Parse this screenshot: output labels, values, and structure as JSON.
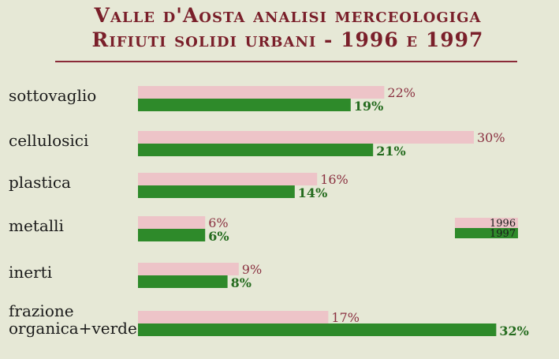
{
  "chart_data": {
    "type": "bar",
    "orientation": "horizontal",
    "title": "Valle d'Aosta analisi merceologiga",
    "subtitle": "Rifiuti solidi urbani - 1996 e 1997",
    "categories": [
      [
        "sottovaglio"
      ],
      [
        "cellulosici"
      ],
      [
        "plastica"
      ],
      [
        "metalli"
      ],
      [
        "inerti"
      ],
      [
        "frazione",
        "organica+verde"
      ]
    ],
    "series": [
      {
        "name": "1996",
        "values": [
          22,
          30,
          16,
          6,
          9,
          17
        ],
        "color": "#edc4c8"
      },
      {
        "name": "1997",
        "values": [
          19,
          21,
          14,
          6,
          8,
          32
        ],
        "color": "#2e8a2a"
      }
    ],
    "value_suffix": "%",
    "legend_position": "right",
    "grid": false
  },
  "colors": {
    "background": "#e6e8d6",
    "title": "#7a1f2a",
    "label_1996": "#8a3040",
    "label_1997": "#246b1e"
  }
}
